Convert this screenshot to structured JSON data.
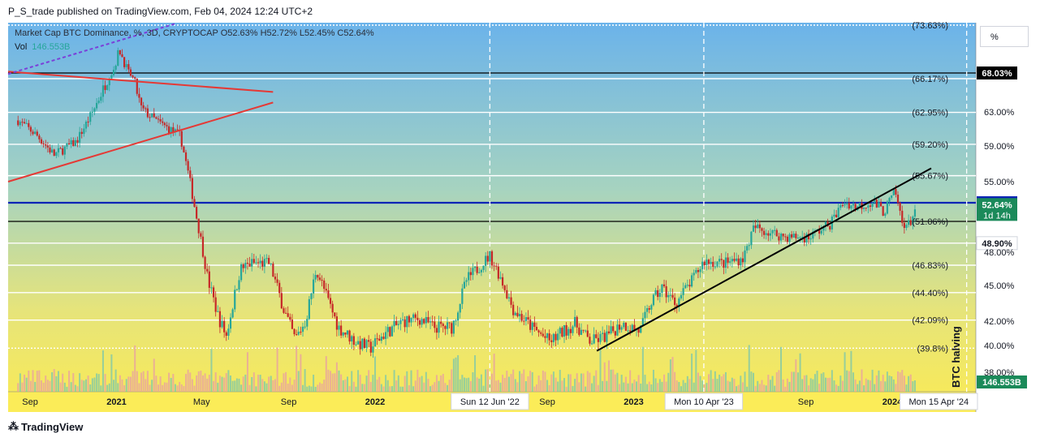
{
  "header": {
    "publisher_line": "P_S_trade published on TradingView.com, Feb 04, 2024 12:24 UTC+2"
  },
  "legend": {
    "symbol_line": "Market Cap BTC Dominance, %, 3D, CRYPTOCAP  O52.63%  H52.72%  L52.45%  C52.64%",
    "vol_label": "Vol",
    "vol_value": "146.553B"
  },
  "scale_button": "%",
  "footer": {
    "brand": "TradingView"
  },
  "colors": {
    "bull": "#26a69a",
    "bear": "#c62828",
    "blue_level": "#0d24b6",
    "trend_red": "#e53935",
    "trend_purple": "#7b3fd9",
    "bg_top": "#6bb3ea",
    "bg_bottom": "#f5e85a"
  },
  "chart_data": {
    "type": "candlestick",
    "symbol": "Market Cap BTC Dominance, %, 3D, CRYPTOCAP",
    "ylim": [
      36.8,
      73.8
    ],
    "y_ticks": [
      "63.00%",
      "59.00%",
      "55.00%",
      "48.00%",
      "45.00%",
      "42.00%",
      "40.00%",
      "38.00%"
    ],
    "x_ticks": [
      "Sep",
      "2021",
      "May",
      "Sep",
      "2022",
      "Sep",
      "2023",
      "Sep",
      "2024"
    ],
    "x_highlight_labels": [
      "Sun 12 Jun '22",
      "Mon 10 Apr '23",
      "Mon 15 Apr '24"
    ],
    "price_path": [
      [
        "2020-08-15",
        62.0
      ],
      [
        "2020-09-10",
        60.3
      ],
      [
        "2020-10-05",
        58.0
      ],
      [
        "2020-11-05",
        59.5
      ],
      [
        "2020-12-05",
        64.0
      ],
      [
        "2020-12-20",
        66.2
      ],
      [
        "2021-01-05",
        70.8
      ],
      [
        "2021-01-20",
        67.5
      ],
      [
        "2021-02-05",
        63.3
      ],
      [
        "2021-03-01",
        61.8
      ],
      [
        "2021-04-01",
        60.2
      ],
      [
        "2021-04-20",
        53.0
      ],
      [
        "2021-05-10",
        45.5
      ],
      [
        "2021-05-25",
        42.3
      ],
      [
        "2021-06-05",
        40.8
      ],
      [
        "2021-06-25",
        46.5
      ],
      [
        "2021-07-10",
        47.0
      ],
      [
        "2021-08-05",
        47.0
      ],
      [
        "2021-08-25",
        43.0
      ],
      [
        "2021-09-10",
        40.5
      ],
      [
        "2021-09-25",
        42.0
      ],
      [
        "2021-10-10",
        46.5
      ],
      [
        "2021-10-25",
        44.0
      ],
      [
        "2021-11-10",
        41.5
      ],
      [
        "2021-12-05",
        40.3
      ],
      [
        "2021-12-25",
        39.8
      ],
      [
        "2022-01-15",
        41.0
      ],
      [
        "2022-02-10",
        42.0
      ],
      [
        "2022-03-05",
        42.2
      ],
      [
        "2022-03-25",
        41.5
      ],
      [
        "2022-04-20",
        41.5
      ],
      [
        "2022-05-10",
        45.5
      ],
      [
        "2022-06-12",
        47.7
      ],
      [
        "2022-06-25",
        46.0
      ],
      [
        "2022-07-15",
        43.0
      ],
      [
        "2022-08-10",
        41.5
      ],
      [
        "2022-09-05",
        40.3
      ],
      [
        "2022-09-20",
        41.0
      ],
      [
        "2022-10-10",
        41.8
      ],
      [
        "2022-11-01",
        40.3
      ],
      [
        "2022-11-25",
        40.8
      ],
      [
        "2022-12-15",
        41.8
      ],
      [
        "2023-01-10",
        41.2
      ],
      [
        "2023-01-25",
        43.5
      ],
      [
        "2023-02-10",
        44.8
      ],
      [
        "2023-03-01",
        43.5
      ],
      [
        "2023-03-25",
        45.5
      ],
      [
        "2023-04-10",
        47.2
      ],
      [
        "2023-05-10",
        47.0
      ],
      [
        "2023-06-05",
        47.5
      ],
      [
        "2023-06-20",
        50.5
      ],
      [
        "2023-07-10",
        50.0
      ],
      [
        "2023-08-05",
        49.5
      ],
      [
        "2023-09-05",
        49.5
      ],
      [
        "2023-10-05",
        50.8
      ],
      [
        "2023-10-25",
        53.0
      ],
      [
        "2023-11-10",
        52.5
      ],
      [
        "2023-12-05",
        53.0
      ],
      [
        "2023-12-20",
        52.0
      ],
      [
        "2024-01-05",
        54.0
      ],
      [
        "2024-01-15",
        51.0
      ],
      [
        "2024-01-25",
        50.7
      ],
      [
        "2024-02-04",
        52.64
      ]
    ],
    "horizontal_levels": [
      {
        "label": "(73.63%)",
        "value": 73.63,
        "color": "#ffffff",
        "style": "dotted"
      },
      {
        "label": "68.03%",
        "value": 68.03,
        "color": "#000000",
        "style": "solid",
        "axis_badge": true
      },
      {
        "label": "(66.17%)",
        "value": 66.17,
        "color": "#ffffff",
        "style": "solid"
      },
      {
        "label": "(62.95%)",
        "value": 62.95,
        "color": "#ffffff",
        "style": "solid"
      },
      {
        "label": "(59.20%)",
        "value": 59.2,
        "color": "#ffffff",
        "style": "solid"
      },
      {
        "label": "(55.67%)",
        "value": 55.67,
        "color": "#ffffff",
        "style": "solid"
      },
      {
        "label": "52.91%",
        "value": 52.91,
        "color": "#0d24b6",
        "style": "solid",
        "axis_badge": true
      },
      {
        "label": "(51.06%)",
        "value": 51.06,
        "color": "#000000",
        "style": "solid"
      },
      {
        "label": "48.90%",
        "value": 48.9,
        "color": "#ffffff",
        "style": "solid",
        "axis_badge": true
      },
      {
        "label": "(46.83%)",
        "value": 46.83,
        "color": "#ffffff",
        "style": "solid"
      },
      {
        "label": "(44.40%)",
        "value": 44.4,
        "color": "#ffffff",
        "style": "solid"
      },
      {
        "label": "(42.09%)",
        "value": 42.09,
        "color": "#ffffff",
        "style": "solid"
      },
      {
        "label": "(39.8%)",
        "value": 39.8,
        "color": "#ffffff",
        "style": "dotted"
      }
    ],
    "current_price": {
      "label": "52.64%",
      "countdown": "1d 14h",
      "value": 52.64
    },
    "trend_lines": [
      {
        "name": "red-upper",
        "from": [
          "2020-08-01",
          68.2
        ],
        "to": [
          "2021-08-10",
          64.9
        ],
        "color": "#e53935"
      },
      {
        "name": "red-lower",
        "from": [
          "2020-08-01",
          55.0
        ],
        "to": [
          "2021-08-10",
          63.9
        ],
        "color": "#e53935"
      },
      {
        "name": "purple-dotted",
        "from": [
          "2020-08-01",
          67.7
        ],
        "to": [
          "2021-03-25",
          73.8
        ],
        "color": "#7b3fd9",
        "dashed": true
      },
      {
        "name": "black-support",
        "from": [
          "2022-11-10",
          39.6
        ],
        "to": [
          "2024-02-25",
          56.5
        ],
        "color": "#000000"
      }
    ],
    "vertical_markers": [
      "2022-06-12",
      "2023-04-10",
      "2024-04-15"
    ],
    "annotation": "BTC halving",
    "volume": {
      "label": "Vol",
      "last": "146.553B"
    }
  }
}
